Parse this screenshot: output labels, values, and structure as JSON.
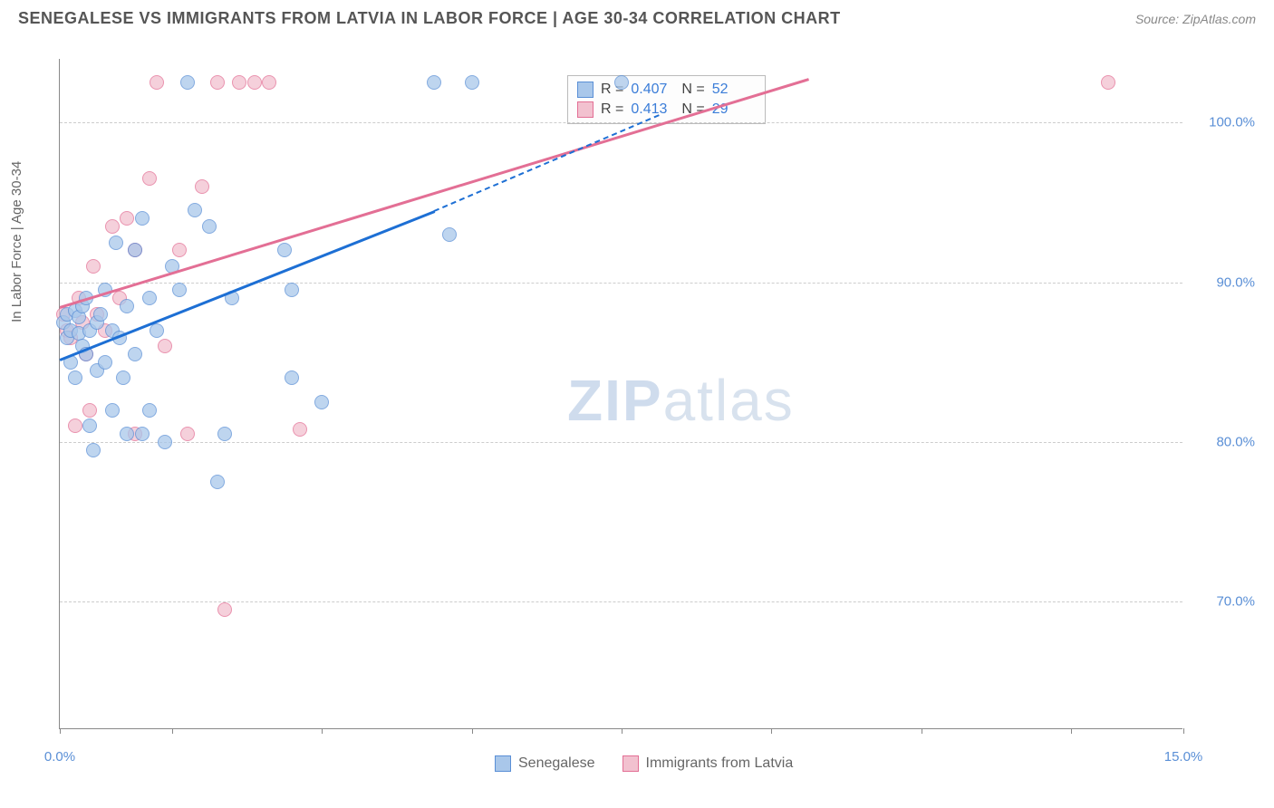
{
  "title": "SENEGALESE VS IMMIGRANTS FROM LATVIA IN LABOR FORCE | AGE 30-34 CORRELATION CHART",
  "source": "Source: ZipAtlas.com",
  "y_axis_label": "In Labor Force | Age 30-34",
  "watermark": {
    "bold": "ZIP",
    "rest": "atlas"
  },
  "chart": {
    "type": "scatter",
    "xlim": [
      0,
      15
    ],
    "ylim": [
      62,
      104
    ],
    "x_ticks": [
      0,
      1.5,
      3.5,
      5.5,
      7.5,
      9.5,
      11.5,
      13.5,
      15
    ],
    "x_tick_labels": {
      "first": "0.0%",
      "last": "15.0%"
    },
    "y_gridlines": [
      70,
      80,
      90,
      100
    ],
    "y_tick_labels": [
      "70.0%",
      "80.0%",
      "90.0%",
      "100.0%"
    ],
    "grid_color": "#cccccc",
    "background_color": "#ffffff",
    "series": {
      "senegalese": {
        "label": "Senegalese",
        "fill": "#a9c7ea",
        "stroke": "#5a8fd6",
        "marker_radius": 8,
        "r_value": "0.407",
        "n_value": "52",
        "trend": {
          "x1": 0,
          "y1": 85.2,
          "x2": 5.0,
          "y2": 94.5,
          "color": "#1d6fd4",
          "dashed_ext": {
            "x2": 8.0,
            "y2": 100.5
          }
        },
        "points": [
          [
            0.05,
            87.5
          ],
          [
            0.1,
            86.5
          ],
          [
            0.1,
            88.0
          ],
          [
            0.15,
            85.0
          ],
          [
            0.15,
            87.0
          ],
          [
            0.2,
            84.0
          ],
          [
            0.2,
            88.2
          ],
          [
            0.25,
            86.8
          ],
          [
            0.25,
            87.8
          ],
          [
            0.3,
            86.0
          ],
          [
            0.3,
            88.5
          ],
          [
            0.35,
            85.5
          ],
          [
            0.35,
            89.0
          ],
          [
            0.4,
            87.0
          ],
          [
            0.4,
            81.0
          ],
          [
            0.45,
            79.5
          ],
          [
            0.5,
            84.5
          ],
          [
            0.5,
            87.5
          ],
          [
            0.55,
            88.0
          ],
          [
            0.6,
            85.0
          ],
          [
            0.6,
            89.5
          ],
          [
            0.7,
            82.0
          ],
          [
            0.7,
            87.0
          ],
          [
            0.75,
            92.5
          ],
          [
            0.8,
            86.5
          ],
          [
            0.85,
            84.0
          ],
          [
            0.9,
            80.5
          ],
          [
            0.9,
            88.5
          ],
          [
            1.0,
            85.5
          ],
          [
            1.0,
            92.0
          ],
          [
            1.1,
            94.0
          ],
          [
            1.1,
            80.5
          ],
          [
            1.2,
            82.0
          ],
          [
            1.2,
            89.0
          ],
          [
            1.3,
            87.0
          ],
          [
            1.4,
            80.0
          ],
          [
            1.5,
            91.0
          ],
          [
            1.6,
            89.5
          ],
          [
            1.7,
            102.5
          ],
          [
            1.8,
            94.5
          ],
          [
            2.0,
            93.5
          ],
          [
            2.1,
            77.5
          ],
          [
            2.2,
            80.5
          ],
          [
            2.3,
            89.0
          ],
          [
            3.0,
            92.0
          ],
          [
            3.1,
            84.0
          ],
          [
            3.1,
            89.5
          ],
          [
            3.5,
            82.5
          ],
          [
            5.0,
            102.5
          ],
          [
            5.2,
            93.0
          ],
          [
            5.5,
            102.5
          ],
          [
            7.5,
            102.5
          ]
        ]
      },
      "latvia": {
        "label": "Immigrants from Latvia",
        "fill": "#f2c1cf",
        "stroke": "#e36f95",
        "marker_radius": 8,
        "r_value": "0.413",
        "n_value": "29",
        "trend": {
          "x1": 0,
          "y1": 88.5,
          "x2": 10.0,
          "y2": 102.8,
          "color": "#e36f95"
        },
        "points": [
          [
            0.05,
            88.0
          ],
          [
            0.1,
            87.0
          ],
          [
            0.15,
            86.5
          ],
          [
            0.2,
            81.0
          ],
          [
            0.25,
            89.0
          ],
          [
            0.3,
            87.5
          ],
          [
            0.35,
            85.5
          ],
          [
            0.4,
            82.0
          ],
          [
            0.45,
            91.0
          ],
          [
            0.5,
            88.0
          ],
          [
            0.6,
            87.0
          ],
          [
            0.7,
            93.5
          ],
          [
            0.8,
            89.0
          ],
          [
            0.9,
            94.0
          ],
          [
            1.0,
            80.5
          ],
          [
            1.0,
            92.0
          ],
          [
            1.2,
            96.5
          ],
          [
            1.3,
            102.5
          ],
          [
            1.4,
            86.0
          ],
          [
            1.6,
            92.0
          ],
          [
            1.7,
            80.5
          ],
          [
            1.9,
            96.0
          ],
          [
            2.1,
            102.5
          ],
          [
            2.2,
            69.5
          ],
          [
            2.4,
            102.5
          ],
          [
            2.6,
            102.5
          ],
          [
            2.8,
            102.5
          ],
          [
            3.2,
            80.8
          ],
          [
            14.0,
            102.5
          ]
        ]
      }
    }
  }
}
